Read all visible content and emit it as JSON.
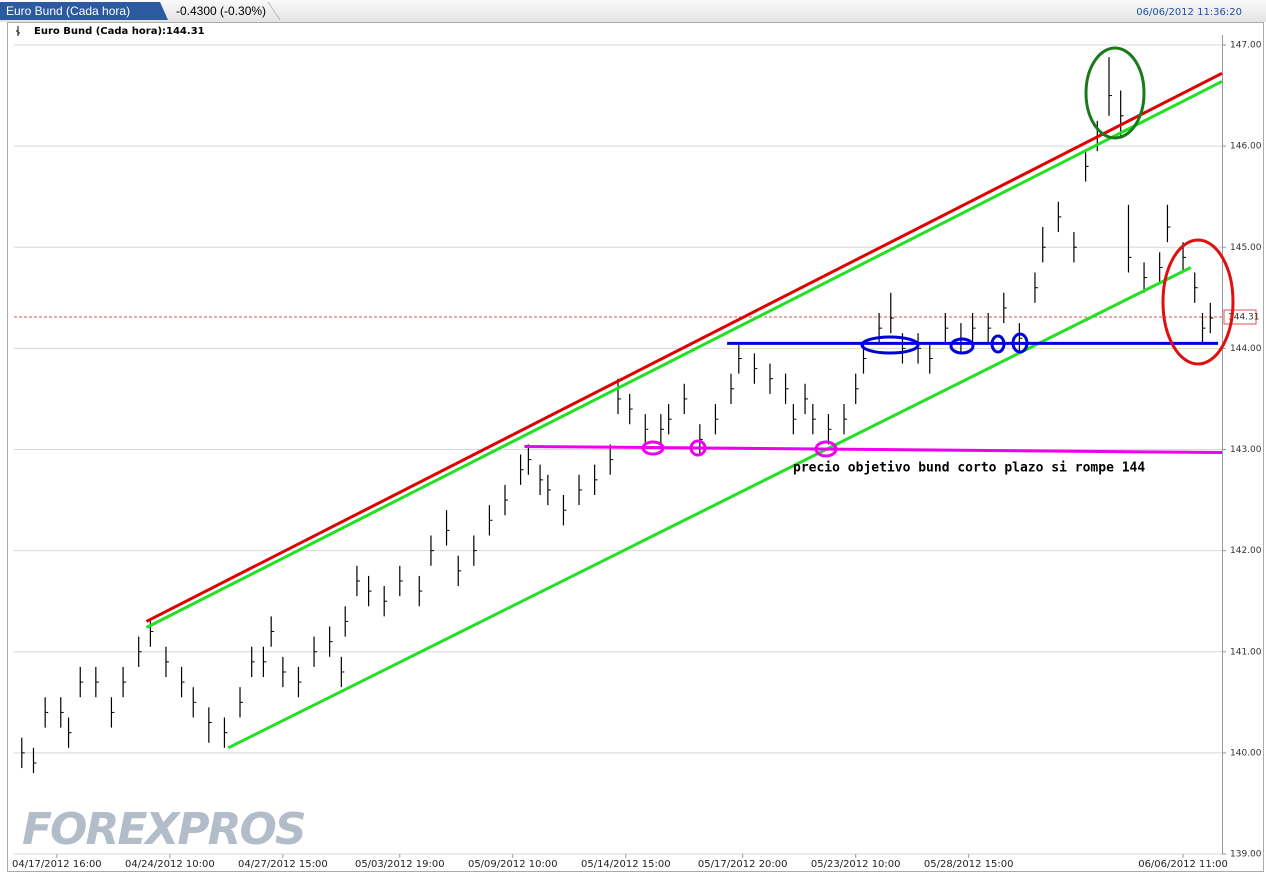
{
  "header": {
    "tab": "Euro Bund (Cada hora)",
    "change": "-0.4300 (-0.30%)",
    "timestamp": "06/06/2012 11:36:20"
  },
  "chart_data": {
    "type": "ohlc",
    "legend": "Euro Bund (Cada hora):144.31",
    "watermark": "FOREXPROS",
    "annotation": "precio objetivo bund corto plazo si rompe 144",
    "last_price": 144.31,
    "color": "#000000",
    "last_color": "#e05050",
    "x": [
      2,
      5,
      8,
      12,
      14,
      17,
      21,
      25,
      28,
      32,
      35,
      39,
      43,
      46,
      50,
      54,
      58,
      61,
      64,
      66,
      69,
      73,
      77,
      81,
      84,
      85,
      88,
      91,
      95,
      99,
      104,
      107,
      111,
      114,
      118,
      122,
      126,
      130,
      132,
      135,
      137,
      141,
      145,
      149,
      153,
      155,
      158,
      162,
      166,
      168,
      172,
      176,
      180,
      184,
      186,
      190,
      194,
      198,
      200,
      203,
      205,
      209,
      213,
      216,
      218,
      222,
      225,
      228,
      232,
      235,
      239,
      243,
      246,
      250,
      254,
      258,
      262,
      264,
      268,
      272,
      275,
      278,
      281,
      284,
      286,
      290,
      294,
      296,
      300,
      303,
      305,
      307
    ],
    "high": [
      140.15,
      140.05,
      140.55,
      140.55,
      140.35,
      140.85,
      140.85,
      140.55,
      140.85,
      141.15,
      141.32,
      141.05,
      140.85,
      140.65,
      140.45,
      140.35,
      140.65,
      141.05,
      141.05,
      141.35,
      140.95,
      140.85,
      141.15,
      141.25,
      140.95,
      141.45,
      141.85,
      141.75,
      141.65,
      141.85,
      141.75,
      142.15,
      142.4,
      141.95,
      142.15,
      142.45,
      142.65,
      142.95,
      143.05,
      142.85,
      142.75,
      142.55,
      142.75,
      142.85,
      143.05,
      143.7,
      143.55,
      143.35,
      143.35,
      143.45,
      143.65,
      143.25,
      143.45,
      143.75,
      144.05,
      143.95,
      143.85,
      143.75,
      143.45,
      143.65,
      143.45,
      143.35,
      143.45,
      143.75,
      144.05,
      144.35,
      144.55,
      144.15,
      144.15,
      144.05,
      144.35,
      144.25,
      144.35,
      144.35,
      144.55,
      144.25,
      144.75,
      145.2,
      145.45,
      145.15,
      145.95,
      146.25,
      146.88,
      146.55,
      145.42,
      144.85,
      144.95,
      145.42,
      145.05,
      144.75,
      144.35,
      144.45
    ],
    "low": [
      139.85,
      139.8,
      140.25,
      140.25,
      140.05,
      140.55,
      140.55,
      140.25,
      140.55,
      140.85,
      141.05,
      140.75,
      140.55,
      140.35,
      140.1,
      140.05,
      140.35,
      140.75,
      140.75,
      141.05,
      140.65,
      140.55,
      140.85,
      140.95,
      140.65,
      141.15,
      141.55,
      141.45,
      141.35,
      141.55,
      141.45,
      141.85,
      142.05,
      141.65,
      141.85,
      142.15,
      142.35,
      142.65,
      142.75,
      142.55,
      142.45,
      142.25,
      142.45,
      142.55,
      142.75,
      143.35,
      143.25,
      143.05,
      143.05,
      143.15,
      143.35,
      142.95,
      143.15,
      143.45,
      143.75,
      143.65,
      143.55,
      143.45,
      143.15,
      143.35,
      143.15,
      143.05,
      143.15,
      143.45,
      143.75,
      144.05,
      144.15,
      143.85,
      143.85,
      143.75,
      144.05,
      143.95,
      144.05,
      144.05,
      144.25,
      143.95,
      144.45,
      144.85,
      145.15,
      144.85,
      145.65,
      145.95,
      146.3,
      146.1,
      144.75,
      144.55,
      144.65,
      145.05,
      144.75,
      144.45,
      144.05,
      144.15
    ],
    "close": [
      140.0,
      139.9,
      140.4,
      140.4,
      140.2,
      140.7,
      140.7,
      140.4,
      140.7,
      141.0,
      141.2,
      140.9,
      140.7,
      140.5,
      140.3,
      140.2,
      140.5,
      140.9,
      140.9,
      141.2,
      140.8,
      140.7,
      141.0,
      141.1,
      140.8,
      141.3,
      141.7,
      141.6,
      141.5,
      141.7,
      141.6,
      142.0,
      142.2,
      141.8,
      142.0,
      142.3,
      142.5,
      142.8,
      142.9,
      142.7,
      142.6,
      142.4,
      142.6,
      142.7,
      142.9,
      143.5,
      143.4,
      143.2,
      143.2,
      143.3,
      143.5,
      143.1,
      143.3,
      143.6,
      143.9,
      143.8,
      143.7,
      143.6,
      143.3,
      143.5,
      143.3,
      143.2,
      143.3,
      143.6,
      143.9,
      144.2,
      144.3,
      144.0,
      144.0,
      143.9,
      144.2,
      144.1,
      144.2,
      144.2,
      144.4,
      144.1,
      144.6,
      145.0,
      145.3,
      145.0,
      145.8,
      146.1,
      146.5,
      146.3,
      144.9,
      144.7,
      144.8,
      145.2,
      144.9,
      144.6,
      144.2,
      144.3
    ],
    "lines": [
      {
        "color": "#e00000",
        "x": [
          34,
          310
        ],
        "y": [
          141.3,
          146.72
        ]
      },
      {
        "color": "#22e022",
        "x": [
          34,
          310
        ],
        "y": [
          141.24,
          146.64
        ]
      },
      {
        "color": "#22e022",
        "x": [
          55,
          302
        ],
        "y": [
          140.05,
          144.8
        ]
      },
      {
        "color": "#0000dd",
        "x": [
          183,
          309
        ],
        "y": [
          144.05,
          144.05
        ]
      },
      {
        "color": "#ee00ee",
        "x": [
          131,
          310
        ],
        "y": [
          143.03,
          142.97
        ]
      }
    ],
    "xlim": [
      0,
      310
    ],
    "xticks": [
      {
        "value": 11,
        "label": "04/17/2012 16:00"
      },
      {
        "value": 40,
        "label": "04/24/2012 10:00"
      },
      {
        "value": 69,
        "label": "04/27/2012 15:00"
      },
      {
        "value": 99,
        "label": "05/03/2012 19:00"
      },
      {
        "value": 128,
        "label": "05/09/2012 10:00"
      },
      {
        "value": 157,
        "label": "05/14/2012 15:00"
      },
      {
        "value": 187,
        "label": "05/17/2012 20:00"
      },
      {
        "value": 216,
        "label": "05/23/2012 10:00"
      },
      {
        "value": 245,
        "label": "05/28/2012 15:00"
      },
      {
        "value": 300,
        "label": "06/06/2012 11:00"
      }
    ],
    "ylim": [
      139,
      147
    ],
    "yticks": [
      {
        "value": 139,
        "label": "139.00"
      },
      {
        "value": 140,
        "label": "140.00"
      },
      {
        "value": 141,
        "label": "141.00"
      },
      {
        "value": 142,
        "label": "142.00"
      },
      {
        "value": 143,
        "label": "143.00"
      },
      {
        "value": 144,
        "label": "144.00"
      },
      {
        "value": 145,
        "label": "145.00"
      },
      {
        "value": 146,
        "label": "146.00"
      },
      {
        "value": 147,
        "label": "147.00"
      }
    ],
    "grid": true
  }
}
